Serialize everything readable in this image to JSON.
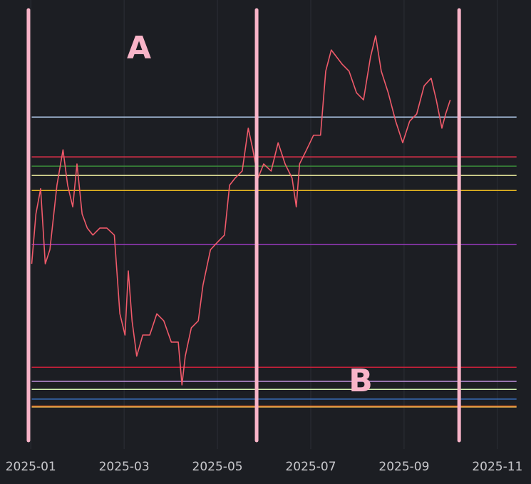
{
  "chart_data": {
    "type": "line",
    "x": [
      1.02,
      1.11,
      1.21,
      1.31,
      1.41,
      1.56,
      1.69,
      1.79,
      1.9,
      1.99,
      2.1,
      2.21,
      2.33,
      2.48,
      2.63,
      2.79,
      2.91,
      3.02,
      3.09,
      3.17,
      3.27,
      3.4,
      3.55,
      3.7,
      3.85,
      4.01,
      4.16,
      4.24,
      4.31,
      4.44,
      4.59,
      4.69,
      4.85,
      5.0,
      5.15,
      5.26,
      5.38,
      5.53,
      5.66,
      5.76,
      5.87,
      5.99,
      6.15,
      6.3,
      6.45,
      6.6,
      6.69,
      6.76,
      6.91,
      7.06,
      7.21,
      7.32,
      7.44,
      7.67,
      7.82,
      7.98,
      8.13,
      8.28,
      8.39,
      8.51,
      8.66,
      8.82,
      8.97,
      9.12,
      9.27,
      9.43,
      9.58,
      9.69,
      9.81,
      9.89,
      9.99
    ],
    "values": [
      40.3,
      51.6,
      57.3,
      40.3,
      43.5,
      58.1,
      66.1,
      58.1,
      53.2,
      62.9,
      51.6,
      48.4,
      46.8,
      48.4,
      48.4,
      46.8,
      29.0,
      24.2,
      38.7,
      27.4,
      19.4,
      24.2,
      24.2,
      29.0,
      27.4,
      22.6,
      22.6,
      12.9,
      19.4,
      25.8,
      27.4,
      35.5,
      43.5,
      45.2,
      46.8,
      58.1,
      59.7,
      61.3,
      71.0,
      66.1,
      59.7,
      62.9,
      61.3,
      67.7,
      62.9,
      59.7,
      53.2,
      62.9,
      66.1,
      69.4,
      69.4,
      83.9,
      88.7,
      85.5,
      83.9,
      79.0,
      77.4,
      87.1,
      91.9,
      83.9,
      79.0,
      72.6,
      67.7,
      72.6,
      74.2,
      80.6,
      82.3,
      77.4,
      71.0,
      74.2,
      77.4
    ],
    "color": "#f05a6a",
    "xlim": [
      0.34,
      11.72
    ],
    "ylim": [
      0,
      100
    ],
    "xticks": [
      {
        "value": 1,
        "label": "2025-01"
      },
      {
        "value": 3,
        "label": "2025-03"
      },
      {
        "value": 5,
        "label": "2025-05"
      },
      {
        "value": 7,
        "label": "2025-07"
      },
      {
        "value": 9,
        "label": "2025-09"
      },
      {
        "value": 11,
        "label": "2025-11"
      }
    ],
    "grid": true,
    "levels": [
      {
        "value": 73.5,
        "color": "#b0c8e8"
      },
      {
        "value": 64.5,
        "color": "#e0304a"
      },
      {
        "value": 62.4,
        "color": "#3a8a3a"
      },
      {
        "value": 60.3,
        "color": "#f0f0a0"
      },
      {
        "value": 56.9,
        "color": "#e8b820"
      },
      {
        "value": 44.7,
        "color": "#9a3ac0"
      },
      {
        "value": 16.9,
        "color": "#c8203a"
      },
      {
        "value": 13.7,
        "color": "#c090e0"
      },
      {
        "value": 11.9,
        "color": "#d0f0b0"
      },
      {
        "value": 9.7,
        "color": "#3a70c0"
      },
      {
        "value": 8.1,
        "color": "#e06020"
      },
      {
        "value": 7.9,
        "color": "#e0b050"
      }
    ],
    "levels_xrange": [
      1.02,
      11.41
    ],
    "markers": [
      0.95,
      5.84,
      10.18
    ],
    "marker_color": "#f8b4c8",
    "annotations": [
      "A",
      "B"
    ]
  }
}
